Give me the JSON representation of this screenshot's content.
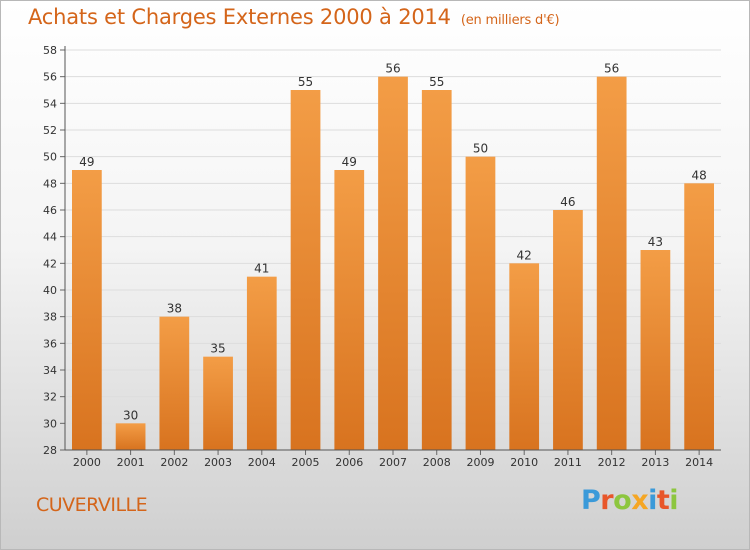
{
  "header": {
    "title": "Achats et Charges Externes 2000 à 2014",
    "subtitle": "(en milliers d'€)"
  },
  "footer": {
    "place": "CUVERVILLE",
    "logo_letters": [
      {
        "ch": "P",
        "color": "#3b9ad9"
      },
      {
        "ch": "r",
        "color": "#e8562a"
      },
      {
        "ch": "o",
        "color": "#8dc63f"
      },
      {
        "ch": "x",
        "color": "#f5a623"
      },
      {
        "ch": "i",
        "color": "#3b9ad9"
      },
      {
        "ch": "t",
        "color": "#e8562a"
      },
      {
        "ch": "i",
        "color": "#8dc63f"
      }
    ]
  },
  "chart_data": {
    "type": "bar",
    "title": "Achats et Charges Externes 2000 à 2014",
    "subtitle": "(en milliers d'€)",
    "categories": [
      "2000",
      "2001",
      "2002",
      "2003",
      "2004",
      "2005",
      "2006",
      "2007",
      "2008",
      "2009",
      "2010",
      "2011",
      "2012",
      "2013",
      "2014"
    ],
    "values": [
      49,
      30,
      38,
      35,
      41,
      55,
      49,
      56,
      55,
      50,
      42,
      46,
      56,
      43,
      48
    ],
    "ylim": [
      28,
      58
    ],
    "yticks": [
      28,
      30,
      32,
      34,
      36,
      38,
      40,
      42,
      44,
      46,
      48,
      50,
      52,
      54,
      56,
      58
    ],
    "grid": true,
    "bar_color": "#f39d46",
    "bar_color_dark": "#d8731f"
  }
}
